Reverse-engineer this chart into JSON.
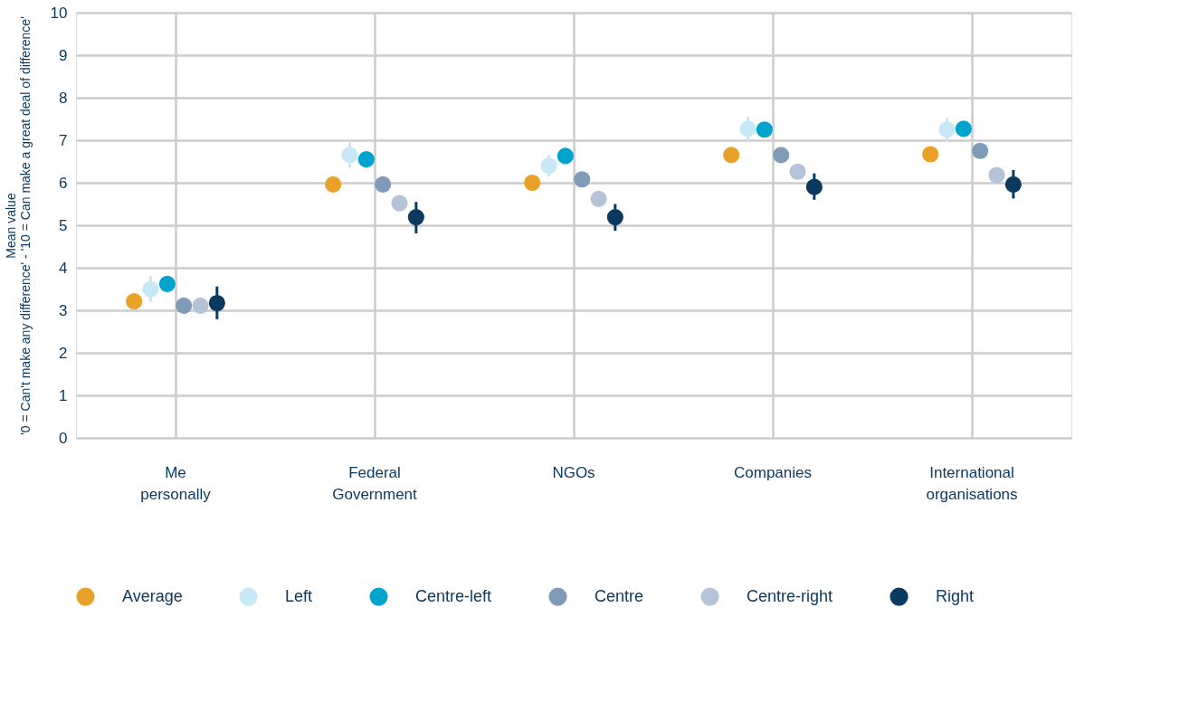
{
  "chart_data": {
    "type": "scatter",
    "ylabel": "Mean value\n'0 = Can't make any difference' - '10 = Can make a great deal of difference'",
    "categories": [
      "Me personally",
      "Federal Government",
      "NGOs",
      "Companies",
      "International organisations"
    ],
    "series": [
      {
        "name": "Average",
        "color": "#e8a22a",
        "values": [
          3.21,
          5.96,
          6.0,
          6.65,
          6.67
        ]
      },
      {
        "name": "Left",
        "color": "#c9e8f7",
        "values": [
          3.5,
          6.65,
          6.4,
          7.27,
          7.25
        ],
        "errors": [
          [
            3.2,
            3.8
          ],
          [
            6.35,
            6.95
          ],
          [
            6.15,
            6.65
          ],
          [
            6.98,
            7.55
          ],
          [
            6.97,
            7.53
          ]
        ]
      },
      {
        "name": "Centre-left",
        "color": "#00a3cc",
        "values": [
          3.62,
          6.55,
          6.63,
          7.25,
          7.27
        ]
      },
      {
        "name": "Centre",
        "color": "#7f9bb8",
        "values": [
          3.11,
          5.96,
          6.08,
          6.65,
          6.75
        ]
      },
      {
        "name": "Centre-right",
        "color": "#b4c3d6",
        "values": [
          3.11,
          5.52,
          5.62,
          6.26,
          6.18
        ]
      },
      {
        "name": "Right",
        "color": "#0b3a60",
        "values": [
          3.17,
          5.19,
          5.19,
          5.9,
          5.96
        ],
        "errors": [
          [
            2.79,
            3.56
          ],
          [
            4.81,
            5.55
          ],
          [
            4.87,
            5.5
          ],
          [
            5.6,
            6.22
          ],
          [
            5.63,
            6.3
          ]
        ]
      }
    ],
    "ylim": [
      0,
      10
    ],
    "yticks": [
      0,
      1,
      2,
      3,
      4,
      5,
      6,
      7,
      8,
      9,
      10
    ],
    "grid": true,
    "legend": "bottom",
    "marker": "circle"
  }
}
